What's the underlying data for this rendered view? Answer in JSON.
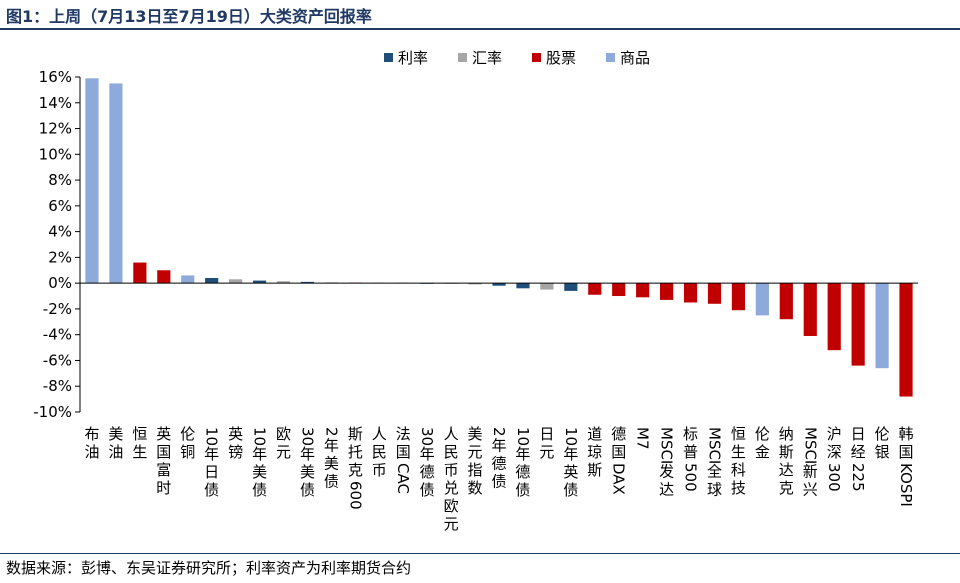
{
  "page": {
    "figure_title": "图1：上周（7月13日至7月19日）大类资产回报率",
    "source_note": "数据来源：彭博、东吴证券研究所；利率资产为利率期货合约"
  },
  "colors": {
    "利率": "#1f4e79",
    "汇率": "#a6a6a6",
    "股票": "#c00000",
    "商品": "#8eaadb"
  },
  "chart_data": {
    "type": "bar",
    "title": "",
    "xlabel": "",
    "ylabel": "",
    "ylim": [
      -10,
      16
    ],
    "yticks": [
      -10,
      -8,
      -6,
      -4,
      -2,
      0,
      2,
      4,
      6,
      8,
      10,
      12,
      14,
      16
    ],
    "ytick_format": "percent",
    "grid": false,
    "legend_position": "top-center",
    "legend": [
      "利率",
      "汇率",
      "股票",
      "商品"
    ],
    "categories": [
      "布油",
      "美油",
      "恒生",
      "英国富时",
      "伦铜",
      "10年日债",
      "英镑",
      "10年美债",
      "欧元",
      "30年美债",
      "2年美债",
      "斯托克600",
      "人民币",
      "法国CAC",
      "30年德债",
      "人民币兑欧元",
      "美元指数",
      "2年德债",
      "10年德债",
      "日元",
      "10年英债",
      "道琼斯",
      "德国DAX",
      "M7",
      "MSCI发达",
      "标普500",
      "MSCI全球",
      "恒生科技",
      "伦金",
      "纳斯达克",
      "MSCI新兴",
      "沪深300",
      "日经225",
      "伦银",
      "韩国KOSPI"
    ],
    "values": [
      15.9,
      15.5,
      1.6,
      1.0,
      0.6,
      0.4,
      0.3,
      0.2,
      0.15,
      0.1,
      0.05,
      0.04,
      0.03,
      0.02,
      -0.02,
      -0.05,
      -0.1,
      -0.2,
      -0.4,
      -0.5,
      -0.6,
      -0.9,
      -1.0,
      -1.1,
      -1.3,
      -1.5,
      -1.6,
      -2.1,
      -2.5,
      -2.8,
      -4.1,
      -5.2,
      -6.4,
      -6.6,
      -8.8
    ],
    "asset_class": [
      "商品",
      "商品",
      "股票",
      "股票",
      "商品",
      "利率",
      "汇率",
      "利率",
      "汇率",
      "利率",
      "利率",
      "股票",
      "汇率",
      "股票",
      "利率",
      "汇率",
      "汇率",
      "利率",
      "利率",
      "汇率",
      "利率",
      "股票",
      "股票",
      "股票",
      "股票",
      "股票",
      "股票",
      "股票",
      "商品",
      "股票",
      "股票",
      "股票",
      "股票",
      "商品",
      "股票"
    ]
  }
}
